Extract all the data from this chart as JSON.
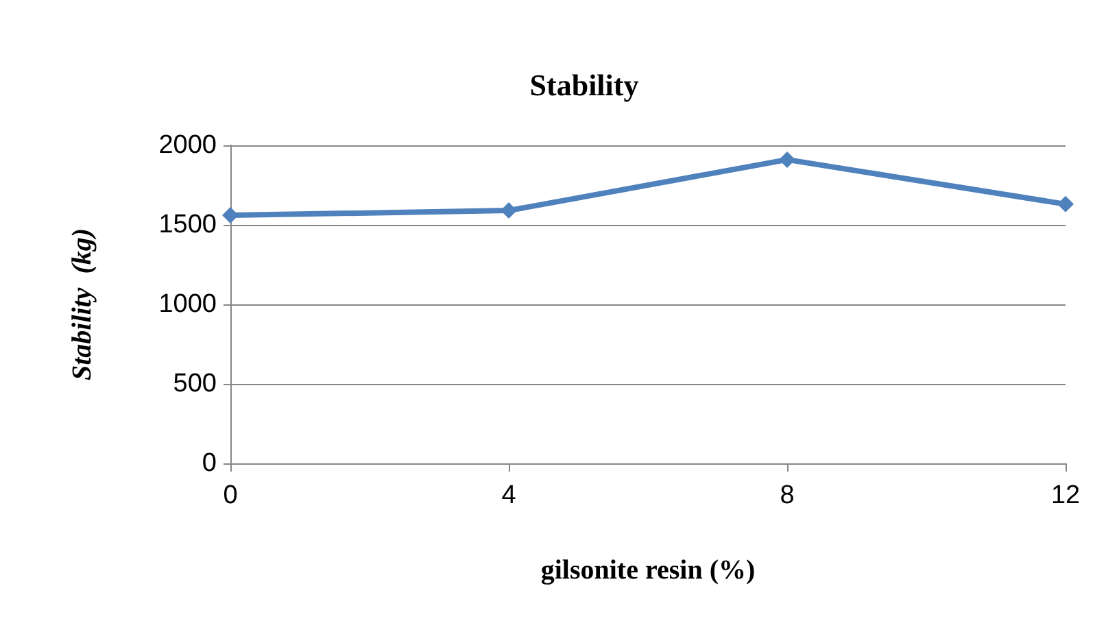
{
  "chart_data": {
    "type": "line",
    "title": "Stability",
    "xlabel": "gilsonite resin (%)",
    "ylabel": "Stability  (kg)",
    "categories": [
      "0",
      "4",
      "8",
      "12"
    ],
    "series": [
      {
        "color": "#4f81bd",
        "values": [
          1560,
          1590,
          1910,
          1630
        ]
      }
    ],
    "ylim": [
      0,
      2000
    ],
    "yticks": [
      0,
      500,
      1000,
      1500,
      2000
    ],
    "grid": "y",
    "marker": "diamond",
    "line_style": "solid"
  }
}
